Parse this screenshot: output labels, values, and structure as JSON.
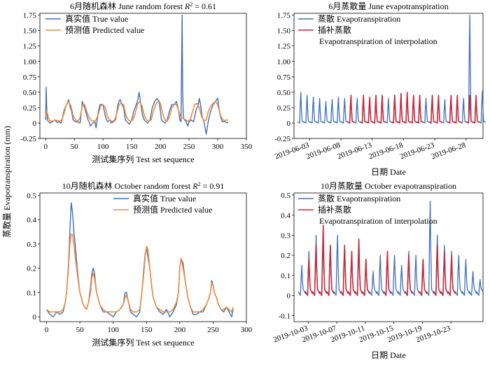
{
  "figure": {
    "ylabel": "蒸散量 Evapotranspiration (mm)"
  },
  "colors": {
    "true": "#3f6fb5",
    "pred": "#f08a3c",
    "interp": "#c8283a",
    "axis": "#000000"
  },
  "chart_data": [
    {
      "type": "line",
      "title_pre": "6月随机森林 June random forest ",
      "title_sym": "R",
      "title_post": " = 0.61",
      "xlabel": "测试集序列 Test set sequence",
      "xlim": [
        -10,
        350
      ],
      "ylim": [
        -0.25,
        1.78
      ],
      "xticks": [
        0,
        50,
        100,
        150,
        200,
        250,
        300,
        350
      ],
      "yticks": [
        -0.25,
        0,
        0.25,
        0.5,
        0.75,
        1.0,
        1.25,
        1.5,
        1.75
      ],
      "ytick_labels": [
        "-0.25",
        "0",
        "0.25",
        "0.50",
        "0.75",
        "1.00",
        "1.25",
        "1.50",
        "1.75"
      ],
      "legend": [
        "真实值 True value",
        "预测值 Predicted value"
      ],
      "series": [
        {
          "name": "真实值 True value",
          "color": "#3f6fb5",
          "x": [
            0,
            1,
            2,
            3,
            5,
            8,
            12,
            16,
            20,
            24,
            26,
            28,
            32,
            36,
            38,
            40,
            43,
            45,
            48,
            52,
            56,
            60,
            62,
            64,
            68,
            72,
            74,
            76,
            78,
            82,
            86,
            88,
            90,
            92,
            95,
            100,
            104,
            106,
            108,
            112,
            114,
            118,
            122,
            126,
            128,
            130,
            133,
            136,
            139,
            142,
            146,
            150,
            154,
            158,
            160,
            163,
            166,
            169,
            172,
            175,
            178,
            182,
            186,
            190,
            194,
            198,
            200,
            202,
            205,
            208,
            212,
            216,
            220,
            224,
            228,
            232,
            234,
            236,
            238,
            239,
            240,
            242,
            245,
            248,
            250,
            254,
            258,
            262,
            266,
            268,
            270,
            273,
            276,
            280,
            284,
            288,
            292,
            296,
            298,
            300,
            302,
            305,
            308,
            312,
            316,
            318
          ],
          "y": [
            0.05,
            0.58,
            0.2,
            0.05,
            0.02,
            0.0,
            0.02,
            0.05,
            0.01,
            0.02,
            0.0,
            0.02,
            0.2,
            0.3,
            0.32,
            0.38,
            0.25,
            0.2,
            0.05,
            0.02,
            0.02,
            0.0,
            0.15,
            0.35,
            0.25,
            0.12,
            0.05,
            0.02,
            -0.05,
            0.0,
            0.02,
            -0.08,
            0.05,
            0.2,
            0.3,
            0.3,
            0.12,
            0.05,
            0.02,
            0.05,
            0.0,
            0.02,
            0.05,
            0.3,
            0.35,
            0.38,
            0.3,
            0.25,
            0.05,
            0.02,
            -0.02,
            0.05,
            0.2,
            0.3,
            0.35,
            0.5,
            0.3,
            0.12,
            0.05,
            0.02,
            0.0,
            0.05,
            0.25,
            0.35,
            0.4,
            0.35,
            0.2,
            0.05,
            0.02,
            0.0,
            0.05,
            0.2,
            0.3,
            0.3,
            0.35,
            0.2,
            0.05,
            0.02,
            1.75,
            0.5,
            0.1,
            0.05,
            0.02,
            -0.05,
            0.02,
            0.05,
            0.02,
            0.2,
            0.3,
            0.4,
            0.3,
            0.1,
            0.02,
            -0.18,
            0.05,
            0.2,
            0.3,
            0.35,
            0.38,
            0.4,
            0.25,
            0.1,
            0.02,
            0.03,
            0.0,
            0.02
          ]
        },
        {
          "name": "预测值 Predicted value",
          "color": "#f08a3c",
          "x": [
            0,
            2,
            5,
            8,
            12,
            16,
            20,
            24,
            28,
            32,
            36,
            40,
            44,
            48,
            52,
            56,
            60,
            64,
            68,
            72,
            76,
            80,
            84,
            88,
            92,
            96,
            100,
            104,
            108,
            112,
            116,
            120,
            124,
            128,
            132,
            136,
            140,
            144,
            148,
            152,
            156,
            160,
            164,
            168,
            172,
            176,
            180,
            184,
            188,
            192,
            196,
            200,
            204,
            208,
            212,
            216,
            220,
            224,
            228,
            232,
            236,
            240,
            244,
            248,
            252,
            256,
            260,
            264,
            268,
            272,
            276,
            280,
            284,
            288,
            292,
            296,
            300,
            304,
            308,
            312,
            316,
            318
          ],
          "y": [
            0.1,
            0.2,
            0.08,
            0.03,
            0.03,
            0.05,
            0.04,
            0.03,
            0.05,
            0.15,
            0.3,
            0.35,
            0.28,
            0.12,
            0.05,
            0.03,
            0.08,
            0.28,
            0.3,
            0.18,
            0.08,
            0.04,
            0.03,
            0.05,
            0.15,
            0.28,
            0.3,
            0.25,
            0.1,
            0.04,
            0.03,
            0.04,
            0.15,
            0.3,
            0.32,
            0.3,
            0.12,
            0.05,
            0.03,
            0.05,
            0.15,
            0.3,
            0.35,
            0.28,
            0.12,
            0.05,
            0.03,
            0.05,
            0.2,
            0.3,
            0.35,
            0.32,
            0.15,
            0.05,
            0.03,
            0.1,
            0.25,
            0.3,
            0.3,
            0.2,
            0.08,
            0.08,
            0.05,
            0.03,
            0.05,
            0.18,
            0.3,
            0.32,
            0.25,
            0.1,
            0.04,
            0.05,
            0.2,
            0.28,
            0.32,
            0.35,
            0.3,
            0.15,
            0.06,
            0.04,
            0.05,
            0.05
          ]
        }
      ]
    },
    {
      "type": "line",
      "title": "6月蒸散量 June evapotranspiration",
      "xlabel": "日期 Date",
      "xlim": [
        0,
        30.2
      ],
      "ylim": [
        -0.25,
        1.78
      ],
      "xticks": [
        2.5,
        7.5,
        12.5,
        17.5,
        22.5,
        27.5
      ],
      "xtick_labels": [
        "2019-06-03",
        "2019-06-08",
        "2019-06-13",
        "2019-06-18",
        "2019-06-23",
        "2019-06-28"
      ],
      "yticks": [
        -0.25,
        0,
        0.25,
        0.5,
        0.75,
        1.0,
        1.25,
        1.5,
        1.75
      ],
      "ytick_labels": [
        "-0.25",
        "0",
        "0.25",
        "0.50",
        "0.75",
        "1.00",
        "1.25",
        "1.50",
        "1.75"
      ],
      "legend": [
        "蒸散 Evapotranspiration",
        "插补蒸散",
        "Evapotranspiration of interpolation"
      ],
      "series": [
        {
          "name": "蒸散 Evapotranspiration",
          "color": "#3f6fb5",
          "peaks": [
            0.5,
            0.45,
            0.42,
            0.4,
            0.35,
            0.38,
            0.42,
            0.4,
            0.45,
            0.4,
            0.45,
            0.42,
            0.38,
            0.45,
            0.4,
            0.42,
            0.45,
            0.48,
            0.45,
            0.42,
            0.4,
            0.45,
            0.42,
            0.38,
            0.45,
            0.42,
            0.4,
            1.75,
            0.4,
            0.52
          ]
        },
        {
          "name": "插补蒸散",
          "color": "#c8283a",
          "peaks": [
            0,
            0,
            0,
            0,
            0,
            0,
            0,
            0,
            0.45,
            0,
            0.45,
            0.42,
            0.45,
            0.45,
            0,
            0.45,
            0.48,
            0.5,
            0.45,
            0.45,
            0,
            0.45,
            0.45,
            0,
            0.45,
            0.45,
            0,
            0.45,
            0.45,
            0
          ]
        }
      ]
    },
    {
      "type": "line",
      "title_pre": "10月随机森林 October random forest ",
      "title_sym": "R",
      "title_post": " = 0.91",
      "xlabel": "测试集序列 Test set sequence",
      "xlim": [
        -10,
        300
      ],
      "ylim": [
        -0.02,
        0.51
      ],
      "xticks": [
        0,
        50,
        100,
        150,
        200,
        250,
        300
      ],
      "yticks": [
        0,
        0.1,
        0.2,
        0.3,
        0.4,
        0.5
      ],
      "ytick_labels": [
        "0",
        "0.1",
        "0.2",
        "0.3",
        "0.4",
        "0.5"
      ],
      "legend": [
        "真实值 True value",
        "预测值 Predicted value"
      ],
      "series": [
        {
          "name": "真实值 True value",
          "color": "#3f6fb5",
          "x": [
            0,
            5,
            10,
            15,
            20,
            25,
            28,
            30,
            33,
            35,
            37,
            39,
            41,
            43,
            46,
            50,
            55,
            60,
            63,
            66,
            68,
            70,
            72,
            75,
            80,
            85,
            90,
            95,
            100,
            105,
            110,
            115,
            118,
            120,
            123,
            126,
            130,
            135,
            140,
            143,
            146,
            148,
            150,
            152,
            155,
            158,
            160,
            165,
            170,
            175,
            180,
            185,
            190,
            195,
            198,
            200,
            202,
            205,
            208,
            212,
            216,
            220,
            225,
            230,
            235,
            240,
            244,
            246,
            248,
            250,
            252,
            255,
            258,
            262,
            266,
            270,
            274,
            278,
            280
          ],
          "y": [
            0.03,
            0.01,
            0.0,
            0.02,
            0.01,
            0.02,
            0.06,
            0.1,
            0.22,
            0.35,
            0.47,
            0.43,
            0.35,
            0.3,
            0.2,
            0.1,
            0.05,
            0.03,
            0.06,
            0.12,
            0.18,
            0.2,
            0.18,
            0.1,
            0.05,
            0.02,
            0.02,
            0.01,
            0.0,
            0.02,
            0.03,
            0.05,
            0.1,
            0.1,
            0.06,
            0.02,
            0.01,
            0.0,
            0.02,
            0.1,
            0.2,
            0.26,
            0.28,
            0.25,
            0.2,
            0.12,
            0.08,
            0.04,
            0.02,
            0.01,
            0.03,
            0.0,
            0.02,
            0.05,
            0.1,
            0.2,
            0.24,
            0.22,
            0.15,
            0.08,
            0.04,
            0.01,
            0.01,
            0.02,
            0.02,
            0.05,
            0.08,
            0.1,
            0.15,
            0.13,
            0.1,
            0.08,
            0.05,
            0.03,
            0.02,
            0.04,
            0.02,
            0.0,
            0.03
          ]
        },
        {
          "name": "预测值 Predicted value",
          "color": "#f08a3c",
          "x": [
            0,
            5,
            10,
            15,
            20,
            25,
            28,
            30,
            33,
            35,
            37,
            39,
            41,
            43,
            46,
            50,
            55,
            60,
            63,
            66,
            68,
            70,
            72,
            75,
            80,
            85,
            90,
            95,
            100,
            105,
            110,
            115,
            118,
            120,
            123,
            126,
            130,
            135,
            140,
            143,
            146,
            148,
            150,
            152,
            155,
            158,
            160,
            165,
            170,
            175,
            180,
            185,
            190,
            195,
            198,
            200,
            202,
            205,
            208,
            212,
            216,
            220,
            225,
            230,
            235,
            240,
            244,
            246,
            248,
            250,
            252,
            255,
            258,
            262,
            266,
            270,
            274,
            278,
            280
          ],
          "y": [
            0.03,
            0.02,
            0.02,
            0.02,
            0.02,
            0.03,
            0.06,
            0.1,
            0.2,
            0.3,
            0.34,
            0.34,
            0.3,
            0.25,
            0.18,
            0.1,
            0.05,
            0.03,
            0.06,
            0.1,
            0.16,
            0.18,
            0.16,
            0.1,
            0.05,
            0.03,
            0.02,
            0.02,
            0.02,
            0.02,
            0.03,
            0.05,
            0.08,
            0.09,
            0.06,
            0.03,
            0.02,
            0.02,
            0.03,
            0.1,
            0.18,
            0.25,
            0.29,
            0.28,
            0.2,
            0.12,
            0.08,
            0.04,
            0.03,
            0.02,
            0.02,
            0.02,
            0.03,
            0.06,
            0.1,
            0.2,
            0.24,
            0.2,
            0.15,
            0.08,
            0.04,
            0.02,
            0.02,
            0.02,
            0.03,
            0.05,
            0.08,
            0.1,
            0.14,
            0.13,
            0.1,
            0.08,
            0.05,
            0.03,
            0.03,
            0.04,
            0.03,
            0.02,
            0.04
          ]
        }
      ]
    },
    {
      "type": "line",
      "title": "10月蒸散量 October evapotranspiration",
      "xlabel": "日期 Date",
      "xlim": [
        0,
        26.5
      ],
      "ylim": [
        -0.13,
        0.51
      ],
      "xticks": [
        2,
        6,
        10,
        14,
        18,
        22
      ],
      "xtick_labels": [
        "2019-10-03",
        "2019-10-07",
        "2019-10-11",
        "2019-10-15",
        "2019-10-19",
        "2019-10-23"
      ],
      "yticks": [
        -0.1,
        0,
        0.1,
        0.2,
        0.3,
        0.4,
        0.5
      ],
      "ytick_labels": [
        "-0.1",
        "0",
        "0.1",
        "0.2",
        "0.3",
        "0.4",
        "0.5"
      ],
      "legend": [
        "蒸散 Evapotranspiration",
        "插补蒸散",
        "Evapotranspiration of interpolation"
      ],
      "series": [
        {
          "name": "蒸散 Evapotranspiration",
          "color": "#3f6fb5",
          "peaks": [
            0.15,
            0.22,
            0.3,
            0.28,
            0.25,
            0.3,
            0.25,
            0.2,
            0.25,
            0.18,
            0.12,
            0.2,
            0.22,
            0.2,
            0.15,
            0.22,
            0.2,
            0.18,
            0.47,
            0.3,
            0.25,
            0.22,
            0.2,
            0.18,
            0.12,
            0.08
          ]
        },
        {
          "name": "插补蒸散",
          "color": "#c8283a",
          "peaks": [
            0,
            0.18,
            0.25,
            0.35,
            0.25,
            0,
            0.25,
            0.22,
            0.28,
            0.18,
            0,
            0,
            0.22,
            0,
            0,
            0.2,
            0,
            0.18,
            0,
            0.25,
            0.22,
            0.2,
            0,
            0,
            0,
            0
          ]
        }
      ]
    }
  ]
}
